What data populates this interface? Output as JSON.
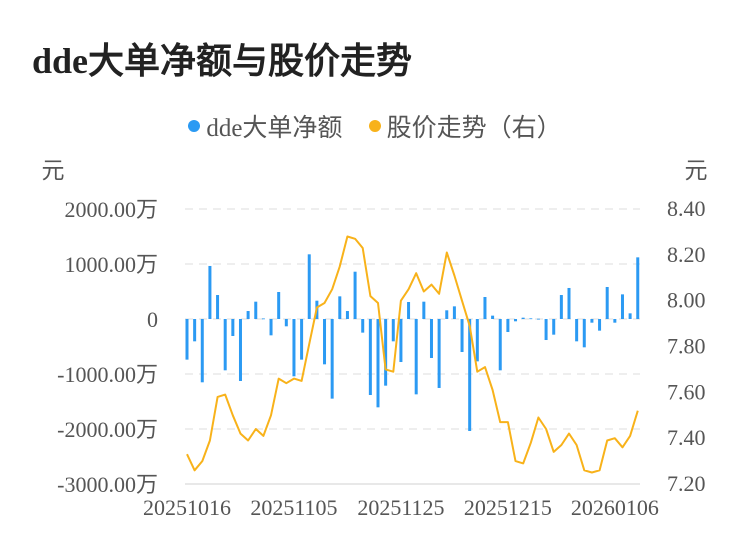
{
  "chart_data": {
    "type": "bar+line",
    "title": "dde大单净额与股价走势",
    "legend": [
      {
        "name": "dde大单净额",
        "color": "#2b9af3"
      },
      {
        "name": "股价走势（右）",
        "color": "#f8b21a"
      }
    ],
    "legend_position": "top-center",
    "y_left_unit": "元",
    "y_right_unit": "元",
    "y_left_ticks": [
      "2000.00万",
      "1000.00万",
      "0",
      "-1000.00万",
      "-2000.00万",
      "-3000.00万"
    ],
    "y_left_range": [
      -3000,
      2000
    ],
    "y_right_ticks": [
      "8.40",
      "8.20",
      "8.00",
      "7.80",
      "7.60",
      "7.40",
      "7.20"
    ],
    "y_right_range": [
      7.2,
      8.4
    ],
    "x_tick_labels": [
      "20251016",
      "20251105",
      "20251125",
      "20251215",
      "20260106"
    ],
    "x_tick_indices": [
      0,
      14,
      28,
      42,
      56
    ],
    "grid": true,
    "series": [
      {
        "name": "dde大单净额",
        "type": "bar",
        "unit": "万元",
        "values": [
          -739,
          -406,
          -1151,
          964,
          436,
          -933,
          -309,
          -1127,
          145,
          315,
          10,
          -297,
          491,
          -133,
          -1042,
          -739,
          1176,
          333,
          -824,
          -1448,
          412,
          145,
          860,
          -248,
          -1382,
          -1606,
          -1212,
          -406,
          -782,
          309,
          -1370,
          315,
          -709,
          -1254,
          158,
          230,
          -600,
          -2036,
          -770,
          400,
          61,
          -933,
          -236,
          -42,
          24,
          12,
          5,
          -382,
          -285,
          436,
          564,
          -406,
          -515,
          -67,
          -212,
          582,
          -67,
          448,
          103,
          1121
        ]
      },
      {
        "name": "股价走势（右）",
        "type": "line",
        "axis": "right",
        "values": [
          7.33,
          7.26,
          7.3,
          7.39,
          7.58,
          7.59,
          7.5,
          7.42,
          7.39,
          7.44,
          7.41,
          7.5,
          7.66,
          7.64,
          7.66,
          7.65,
          7.81,
          7.97,
          7.99,
          8.05,
          8.15,
          8.28,
          8.27,
          8.23,
          8.02,
          7.99,
          7.7,
          7.69,
          8.0,
          8.05,
          8.12,
          8.04,
          8.07,
          8.03,
          8.21,
          8.11,
          8.0,
          7.89,
          7.69,
          7.71,
          7.61,
          7.47,
          7.47,
          7.3,
          7.29,
          7.38,
          7.49,
          7.44,
          7.34,
          7.37,
          7.42,
          7.37,
          7.26,
          7.25,
          7.26,
          7.39,
          7.4,
          7.36,
          7.41,
          7.52
        ]
      }
    ]
  }
}
